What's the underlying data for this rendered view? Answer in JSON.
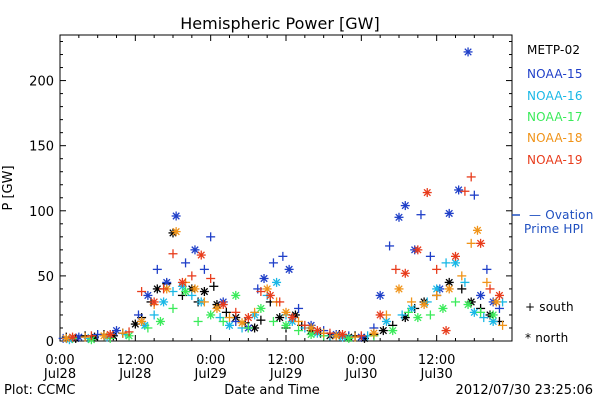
{
  "title": "Hemispheric Power [GW]",
  "ylabel": "P [GW]",
  "xlabel": "Date and Time",
  "footer": {
    "left": "Plot: CCMC",
    "right": "2012/07/30 23:25:06"
  },
  "legend": {
    "satellites": [
      {
        "name": "METP-02",
        "color": "#000000"
      },
      {
        "name": "NOAA-15",
        "color": "#1f3fc8"
      },
      {
        "name": "NOAA-16",
        "color": "#1ab8e6"
      },
      {
        "name": "NOAA-17",
        "color": "#3aeb5a"
      },
      {
        "name": "NOAA-18",
        "color": "#f09318"
      },
      {
        "name": "NOAA-19",
        "color": "#e83c1c"
      }
    ],
    "ovation_line1": "— Ovation",
    "ovation_line2": "Prime HPI",
    "ovation_color": "#1f4fc0",
    "south_label": "+ south",
    "north_label": "* north"
  },
  "chart_data": {
    "type": "scatter",
    "title": "Hemispheric Power [GW]",
    "xlabel": "Date and Time",
    "ylabel": "P [GW]",
    "x_unit": "hours since Jul28 0:00",
    "xlim": [
      0,
      72
    ],
    "ylim": [
      0,
      235
    ],
    "yticks": [
      0,
      50,
      100,
      150,
      200
    ],
    "xticks": [
      {
        "x": 0,
        "line1": "0:00",
        "line2": "Jul28"
      },
      {
        "x": 12,
        "line1": "12:00",
        "line2": "Jul28"
      },
      {
        "x": 24,
        "line1": "0:00",
        "line2": "Jul29"
      },
      {
        "x": 36,
        "line1": "12:00",
        "line2": "Jul29"
      },
      {
        "x": 48,
        "line1": "0:00",
        "line2": "Jul30"
      },
      {
        "x": 60,
        "line1": "12:00",
        "line2": "Jul30"
      }
    ],
    "ovation_hpi": 100,
    "series": [
      {
        "name": "METP-02",
        "color": "#000000",
        "points": [
          [
            1,
            3,
            "+"
          ],
          [
            2.5,
            2,
            "*"
          ],
          [
            4,
            4,
            "+"
          ],
          [
            5.5,
            3,
            "*"
          ],
          [
            7,
            5,
            "+"
          ],
          [
            8.5,
            4,
            "*"
          ],
          [
            10,
            6,
            "+"
          ],
          [
            12,
            13,
            "*"
          ],
          [
            13,
            18,
            "+"
          ],
          [
            14.5,
            30,
            "+"
          ],
          [
            15.5,
            40,
            "*"
          ],
          [
            17,
            44,
            "+"
          ],
          [
            18,
            83,
            "*"
          ],
          [
            19.5,
            35,
            "+"
          ],
          [
            21,
            40,
            "*"
          ],
          [
            22,
            30,
            "+"
          ],
          [
            23,
            38,
            "*"
          ],
          [
            24.5,
            42,
            "+"
          ],
          [
            25,
            28,
            "*"
          ],
          [
            26.5,
            22,
            "+"
          ],
          [
            28,
            18,
            "*"
          ],
          [
            29.5,
            14,
            "+"
          ],
          [
            31,
            10,
            "*"
          ],
          [
            32,
            16,
            "+"
          ],
          [
            33.5,
            30,
            "+"
          ],
          [
            35,
            18,
            "*"
          ],
          [
            36,
            10,
            "+"
          ],
          [
            37.5,
            20,
            "*"
          ],
          [
            38.5,
            12,
            "+"
          ],
          [
            40,
            8,
            "*"
          ],
          [
            41.5,
            6,
            "+"
          ],
          [
            43,
            4,
            "*"
          ],
          [
            44.5,
            5,
            "+"
          ],
          [
            46,
            3,
            "*"
          ],
          [
            47,
            4,
            "+"
          ],
          [
            48.5,
            2,
            "*"
          ],
          [
            50,
            5,
            "+"
          ],
          [
            51.5,
            8,
            "*"
          ],
          [
            53,
            12,
            "+"
          ],
          [
            55,
            18,
            "*"
          ],
          [
            56.5,
            25,
            "+"
          ],
          [
            58,
            30,
            "*"
          ],
          [
            60,
            35,
            "+"
          ],
          [
            62,
            45,
            "*"
          ],
          [
            64,
            40,
            "+"
          ],
          [
            65.5,
            30,
            "*"
          ],
          [
            67,
            25,
            "+"
          ],
          [
            68.5,
            20,
            "*"
          ],
          [
            70,
            15,
            "+"
          ]
        ]
      },
      {
        "name": "NOAA-15",
        "color": "#1f3fc8",
        "points": [
          [
            0.5,
            2,
            "+"
          ],
          [
            3,
            3,
            "*"
          ],
          [
            6,
            5,
            "+"
          ],
          [
            9,
            8,
            "*"
          ],
          [
            12.5,
            20,
            "+"
          ],
          [
            14,
            35,
            "*"
          ],
          [
            15.5,
            55,
            "+"
          ],
          [
            17,
            45,
            "*"
          ],
          [
            18.5,
            96,
            "*"
          ],
          [
            20,
            60,
            "+"
          ],
          [
            21.5,
            70,
            "*"
          ],
          [
            23,
            55,
            "+"
          ],
          [
            24,
            80,
            "+"
          ],
          [
            26,
            30,
            "*"
          ],
          [
            28,
            15,
            "+"
          ],
          [
            30,
            10,
            "*"
          ],
          [
            31.5,
            40,
            "+"
          ],
          [
            32.5,
            48,
            "*"
          ],
          [
            34,
            60,
            "+"
          ],
          [
            35.5,
            65,
            "+"
          ],
          [
            36.5,
            55,
            "*"
          ],
          [
            38,
            25,
            "+"
          ],
          [
            40,
            12,
            "*"
          ],
          [
            42,
            8,
            "+"
          ],
          [
            44,
            5,
            "*"
          ],
          [
            46,
            4,
            "+"
          ],
          [
            48,
            3,
            "*"
          ],
          [
            50,
            10,
            "+"
          ],
          [
            51,
            35,
            "*"
          ],
          [
            52.5,
            73,
            "+"
          ],
          [
            54,
            95,
            "*"
          ],
          [
            55,
            104,
            "*"
          ],
          [
            56.5,
            70,
            "*"
          ],
          [
            57.5,
            97,
            "+"
          ],
          [
            59,
            65,
            "+"
          ],
          [
            60.5,
            40,
            "*"
          ],
          [
            62,
            98,
            "*"
          ],
          [
            63.5,
            116,
            "*"
          ],
          [
            65,
            222,
            "*"
          ],
          [
            66,
            112,
            "+"
          ],
          [
            67,
            35,
            "*"
          ],
          [
            68,
            55,
            "+"
          ],
          [
            69,
            30,
            "*"
          ],
          [
            70,
            25,
            "+"
          ]
        ]
      },
      {
        "name": "NOAA-16",
        "color": "#1ab8e6",
        "points": [
          [
            1.5,
            1,
            "*"
          ],
          [
            4.5,
            2,
            "+"
          ],
          [
            7.5,
            3,
            "*"
          ],
          [
            10.5,
            5,
            "+"
          ],
          [
            13.5,
            12,
            "*"
          ],
          [
            15,
            20,
            "+"
          ],
          [
            16.5,
            30,
            "*"
          ],
          [
            18,
            38,
            "+"
          ],
          [
            19.5,
            42,
            "*"
          ],
          [
            21,
            35,
            "+"
          ],
          [
            22.5,
            30,
            "*"
          ],
          [
            25.5,
            18,
            "+"
          ],
          [
            27,
            12,
            "*"
          ],
          [
            29,
            10,
            "+"
          ],
          [
            31,
            20,
            "*"
          ],
          [
            33,
            35,
            "+"
          ],
          [
            34.5,
            45,
            "*"
          ],
          [
            36,
            20,
            "+"
          ],
          [
            37,
            15,
            "*"
          ],
          [
            39,
            10,
            "+"
          ],
          [
            41,
            6,
            "*"
          ],
          [
            43,
            4,
            "+"
          ],
          [
            45,
            3,
            "*"
          ],
          [
            49,
            4,
            "+"
          ],
          [
            52,
            15,
            "*"
          ],
          [
            54.5,
            20,
            "+"
          ],
          [
            56,
            25,
            "*"
          ],
          [
            58.5,
            30,
            "+"
          ],
          [
            60,
            40,
            "*"
          ],
          [
            61.5,
            60,
            "+"
          ],
          [
            63,
            60,
            "*"
          ],
          [
            64.5,
            45,
            "+"
          ],
          [
            66,
            22,
            "*"
          ],
          [
            67.5,
            18,
            "+"
          ],
          [
            69,
            15,
            "*"
          ],
          [
            70.5,
            30,
            "+"
          ]
        ]
      },
      {
        "name": "NOAA-17",
        "color": "#3aeb5a",
        "points": [
          [
            2,
            2,
            "+"
          ],
          [
            5,
            1,
            "*"
          ],
          [
            8,
            2,
            "+"
          ],
          [
            11,
            4,
            "*"
          ],
          [
            14,
            10,
            "+"
          ],
          [
            16,
            15,
            "*"
          ],
          [
            18,
            25,
            "+"
          ],
          [
            20,
            38,
            "*"
          ],
          [
            22,
            15,
            "+"
          ],
          [
            24,
            20,
            "*"
          ],
          [
            26,
            15,
            "+"
          ],
          [
            28,
            35,
            "*"
          ],
          [
            30,
            10,
            "+"
          ],
          [
            32,
            25,
            "*"
          ],
          [
            34,
            15,
            "+"
          ],
          [
            36,
            12,
            "*"
          ],
          [
            38,
            8,
            "+"
          ],
          [
            40,
            5,
            "*"
          ],
          [
            42,
            4,
            "+"
          ],
          [
            46,
            2,
            "*"
          ],
          [
            50,
            4,
            "+"
          ],
          [
            53,
            8,
            "*"
          ],
          [
            55.5,
            22,
            "+"
          ],
          [
            57,
            18,
            "*"
          ],
          [
            59,
            20,
            "+"
          ],
          [
            61,
            25,
            "*"
          ],
          [
            63,
            30,
            "+"
          ],
          [
            65,
            28,
            "*"
          ],
          [
            67,
            22,
            "+"
          ],
          [
            69,
            20,
            "*"
          ]
        ]
      },
      {
        "name": "NOAA-18",
        "color": "#f09318",
        "points": [
          [
            1,
            2,
            "*"
          ],
          [
            4,
            3,
            "+"
          ],
          [
            7,
            4,
            "*"
          ],
          [
            10,
            6,
            "+"
          ],
          [
            13,
            15,
            "*"
          ],
          [
            15,
            28,
            "+"
          ],
          [
            17,
            40,
            "*"
          ],
          [
            18.5,
            84,
            "*"
          ],
          [
            20,
            45,
            "+"
          ],
          [
            21.5,
            40,
            "*"
          ],
          [
            23,
            30,
            "+"
          ],
          [
            25,
            25,
            "*"
          ],
          [
            27,
            18,
            "+"
          ],
          [
            29,
            14,
            "*"
          ],
          [
            31,
            22,
            "+"
          ],
          [
            33,
            40,
            "*"
          ],
          [
            34.5,
            30,
            "+"
          ],
          [
            36,
            22,
            "*"
          ],
          [
            38,
            15,
            "+"
          ],
          [
            40,
            10,
            "*"
          ],
          [
            42,
            6,
            "+"
          ],
          [
            44,
            4,
            "*"
          ],
          [
            47,
            3,
            "+"
          ],
          [
            50,
            6,
            "*"
          ],
          [
            52,
            20,
            "+"
          ],
          [
            54,
            40,
            "*"
          ],
          [
            56,
            30,
            "+"
          ],
          [
            58,
            28,
            "*"
          ],
          [
            60,
            35,
            "+"
          ],
          [
            62,
            40,
            "*"
          ],
          [
            64,
            50,
            "+"
          ],
          [
            65.5,
            75,
            "+"
          ],
          [
            66.5,
            85,
            "*"
          ],
          [
            68,
            45,
            "+"
          ],
          [
            69.5,
            30,
            "*"
          ],
          [
            70.5,
            12,
            "+"
          ]
        ]
      },
      {
        "name": "NOAA-19",
        "color": "#e83c1c",
        "points": [
          [
            2,
            3,
            "*"
          ],
          [
            5,
            4,
            "+"
          ],
          [
            8,
            5,
            "*"
          ],
          [
            11,
            7,
            "+"
          ],
          [
            13,
            38,
            "+"
          ],
          [
            15,
            30,
            "*"
          ],
          [
            16.5,
            40,
            "+"
          ],
          [
            18,
            67,
            "+"
          ],
          [
            19.5,
            45,
            "*"
          ],
          [
            21,
            50,
            "+"
          ],
          [
            22.5,
            66,
            "*"
          ],
          [
            24,
            48,
            "+"
          ],
          [
            26,
            28,
            "*"
          ],
          [
            28,
            22,
            "+"
          ],
          [
            30,
            18,
            "*"
          ],
          [
            32,
            38,
            "+"
          ],
          [
            33.5,
            35,
            "*"
          ],
          [
            35,
            30,
            "+"
          ],
          [
            37,
            18,
            "*"
          ],
          [
            39,
            12,
            "+"
          ],
          [
            41,
            8,
            "*"
          ],
          [
            43,
            6,
            "+"
          ],
          [
            45,
            5,
            "*"
          ],
          [
            48,
            4,
            "+"
          ],
          [
            51,
            20,
            "*"
          ],
          [
            53.5,
            55,
            "+"
          ],
          [
            55,
            52,
            "*"
          ],
          [
            57,
            70,
            "*"
          ],
          [
            58.5,
            114,
            "*"
          ],
          [
            60,
            55,
            "+"
          ],
          [
            61.5,
            8,
            "*"
          ],
          [
            63,
            65,
            "*"
          ],
          [
            64.5,
            115,
            "+"
          ],
          [
            65.5,
            126,
            "+"
          ],
          [
            67,
            75,
            "*"
          ],
          [
            68.5,
            40,
            "+"
          ],
          [
            70,
            35,
            "*"
          ]
        ]
      }
    ]
  }
}
